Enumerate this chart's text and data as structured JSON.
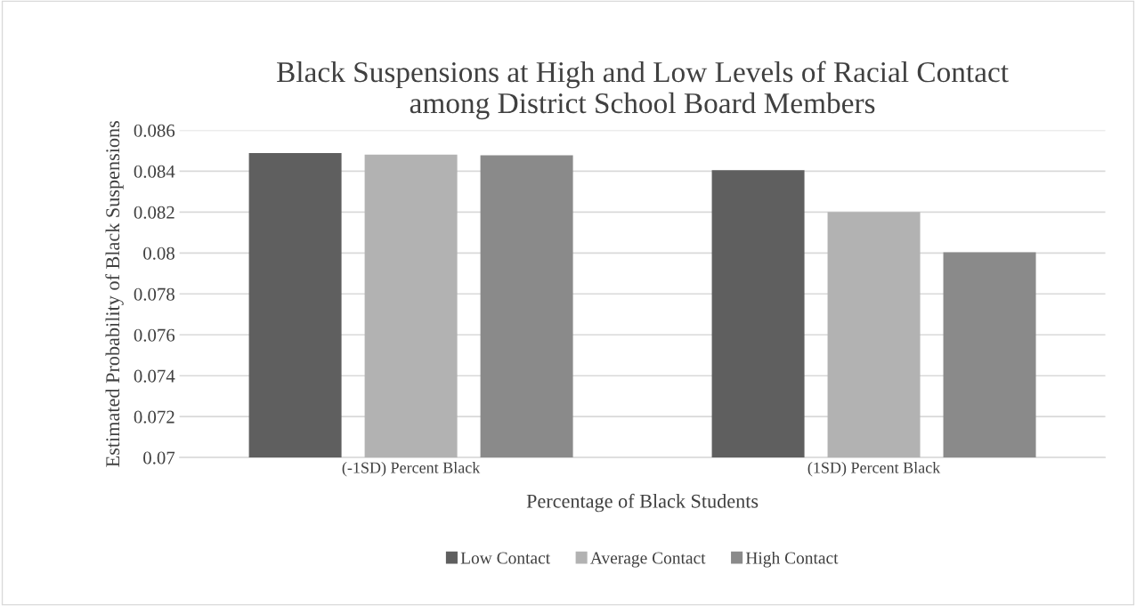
{
  "chart_data": {
    "type": "bar",
    "title": "Black Suspensions at High and Low Levels of Racial Contact\namong District School Board Members",
    "xlabel": "Percentage of Black Students",
    "ylabel": "Estimated Probability of Black Suspensions",
    "categories": [
      "(-1SD) Percent Black",
      "(1SD) Percent Black"
    ],
    "series": [
      {
        "name": "Low Contact",
        "color": "#5f5f5f",
        "values": [
          0.08489,
          0.08405
        ]
      },
      {
        "name": "Average Contact",
        "color": "#b2b2b2",
        "values": [
          0.08481,
          0.082
        ]
      },
      {
        "name": "High Contact",
        "color": "#8a8a8a",
        "values": [
          0.08478,
          0.08004
        ]
      }
    ],
    "ylim": [
      0.07,
      0.086
    ],
    "yticks": [
      0.07,
      0.072,
      0.074,
      0.076,
      0.078,
      0.08,
      0.082,
      0.084,
      0.086
    ],
    "grid": "y",
    "legend": "bottom"
  }
}
